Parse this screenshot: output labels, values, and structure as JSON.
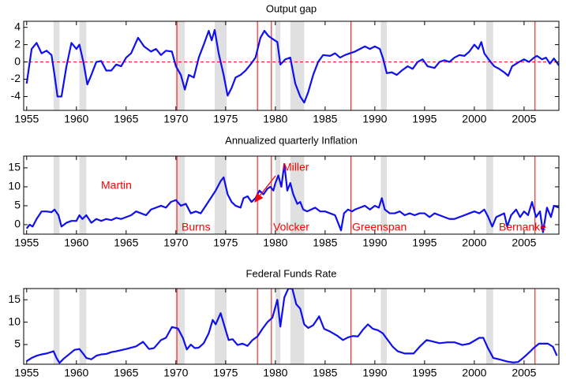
{
  "chart_data": [
    {
      "type": "line",
      "title": "Output gap",
      "color": "#1010ee",
      "xlim": [
        1954.7,
        2008.5
      ],
      "ylim": [
        -5.6,
        4.7
      ],
      "xticks": [
        1955,
        1960,
        1965,
        1970,
        1975,
        1980,
        1985,
        1990,
        1995,
        2000,
        2005
      ],
      "yticks": [
        -4,
        -2,
        0,
        2,
        4
      ],
      "hline": 0,
      "hline_color": "#ff0000",
      "shade_color": "#e0e0e0",
      "vline_color": "#ff0000",
      "recessions": [
        [
          1957.7,
          1958.3
        ],
        [
          1960.3,
          1961.0
        ],
        [
          1970.0,
          1970.9
        ],
        [
          1973.9,
          1975.1
        ],
        [
          1980.0,
          1980.5
        ],
        [
          1981.5,
          1982.9
        ],
        [
          1990.6,
          1991.2
        ],
        [
          2001.2,
          2001.9
        ]
      ],
      "fed_chair_changes": [
        1970.1,
        1978.2,
        1979.6,
        1987.6,
        2006.1
      ],
      "x": [
        1955,
        1955.5,
        1956,
        1956.5,
        1957,
        1957.5,
        1957.8,
        1958.1,
        1958.5,
        1959,
        1959.5,
        1960,
        1960.3,
        1960.7,
        1961.1,
        1961.5,
        1962,
        1962.5,
        1963,
        1963.5,
        1964,
        1964.5,
        1965,
        1965.5,
        1966.2,
        1966.8,
        1967.5,
        1968,
        1968.5,
        1969,
        1969.6,
        1970,
        1970.5,
        1970.9,
        1971.3,
        1971.8,
        1972.3,
        1972.8,
        1973.3,
        1973.6,
        1973.9,
        1974.3,
        1974.8,
        1975.2,
        1975.6,
        1976,
        1976.5,
        1977,
        1977.5,
        1978,
        1978.5,
        1978.9,
        1979.3,
        1979.8,
        1980.2,
        1980.5,
        1981,
        1981.5,
        1982,
        1982.5,
        1982.9,
        1983.3,
        1983.8,
        1984.3,
        1984.8,
        1985.5,
        1986,
        1986.5,
        1987,
        1987.5,
        1988,
        1988.5,
        1989,
        1989.5,
        1990,
        1990.5,
        1990.8,
        1991.2,
        1991.7,
        1992.2,
        1992.7,
        1993.3,
        1993.8,
        1994.3,
        1994.8,
        1995.3,
        1996,
        1996.5,
        1997,
        1997.5,
        1998,
        1998.5,
        1999,
        1999.5,
        2000,
        2000.4,
        2000.7,
        2001,
        2001.5,
        2002,
        2002.5,
        2003,
        2003.4,
        2003.8,
        2004.5,
        2005,
        2005.5,
        2006,
        2006.3,
        2006.8,
        2007.2,
        2007.6,
        2008,
        2008.5
      ],
      "values": [
        -2.5,
        1.5,
        2.2,
        1.0,
        1.3,
        0.8,
        -1.5,
        -4,
        -4,
        -0.5,
        2.2,
        1.5,
        2.0,
        0,
        -2.6,
        -1.5,
        0,
        0.1,
        -1,
        -1,
        -0.3,
        -0.5,
        0.5,
        1.0,
        2.8,
        1.8,
        1.2,
        1.5,
        0.8,
        1.3,
        1.2,
        -0.5,
        -1.5,
        -3.2,
        -1.5,
        -1.8,
        0.5,
        2.0,
        3.6,
        2.5,
        3.7,
        1,
        -1.5,
        -3.9,
        -3,
        -1.8,
        -1.5,
        -1.0,
        -0.3,
        0.5,
        2.8,
        3.6,
        3.0,
        2.6,
        2.3,
        -0.3,
        0.3,
        0.5,
        -2.5,
        -4.0,
        -4.7,
        -3.5,
        -1.5,
        0,
        0.8,
        0.7,
        1.0,
        0.5,
        0.8,
        1.0,
        1.2,
        1.5,
        1.8,
        1.5,
        1.8,
        1.5,
        0.5,
        -1.3,
        -1.2,
        -1.5,
        -1.0,
        -0.5,
        -0.8,
        0,
        0.3,
        -0.5,
        -0.7,
        0,
        0.2,
        0,
        0.5,
        0.8,
        0.7,
        1.2,
        2.0,
        1.5,
        2.3,
        1.0,
        0.2,
        -0.5,
        -0.8,
        -1.2,
        -1.6,
        -0.5,
        0,
        0.3,
        0,
        0.5,
        0.7,
        0.3,
        0.5,
        -0.2,
        0.4,
        -0.4
      ]
    },
    {
      "type": "line",
      "title": "Annualized quarterly Inflation",
      "color": "#1010ee",
      "xlim": [
        1954.7,
        2008.5
      ],
      "ylim": [
        -2.5,
        18.1
      ],
      "xticks": [
        1955,
        1960,
        1965,
        1970,
        1975,
        1980,
        1985,
        1990,
        1995,
        2000,
        2005
      ],
      "yticks": [
        0,
        5,
        10,
        15
      ],
      "shade_color": "#e0e0e0",
      "vline_color": "#ff0000",
      "recessions": [
        [
          1957.7,
          1958.3
        ],
        [
          1960.3,
          1961.0
        ],
        [
          1970.0,
          1970.9
        ],
        [
          1973.9,
          1975.1
        ],
        [
          1980.0,
          1980.5
        ],
        [
          1981.5,
          1982.9
        ],
        [
          1990.6,
          1991.2
        ],
        [
          2001.2,
          2001.9
        ]
      ],
      "fed_chair_changes": [
        1970.1,
        1978.2,
        1979.6,
        1987.6,
        2006.1
      ],
      "annotations": [
        "Martin",
        "Burns",
        "Miller",
        "Volcker",
        "Greenspan",
        "Bernanke"
      ],
      "x": [
        1955,
        1955.3,
        1955.6,
        1956,
        1956.5,
        1957,
        1957.5,
        1957.8,
        1958.2,
        1958.5,
        1959,
        1959.5,
        1960,
        1960.3,
        1960.6,
        1961,
        1961.5,
        1962,
        1962.5,
        1963,
        1963.5,
        1964,
        1964.5,
        1965,
        1965.5,
        1966,
        1966.5,
        1967,
        1967.5,
        1968,
        1968.5,
        1969,
        1969.5,
        1970,
        1970.5,
        1971,
        1971.5,
        1972,
        1972.5,
        1973,
        1973.5,
        1974,
        1974.5,
        1974.8,
        1975.2,
        1975.6,
        1976,
        1976.5,
        1976.8,
        1977.2,
        1977.6,
        1978,
        1978.4,
        1978.8,
        1979.2,
        1979.5,
        1979.8,
        1980,
        1980.3,
        1980.6,
        1980.9,
        1981.2,
        1981.5,
        1981.8,
        1982.2,
        1982.5,
        1982.8,
        1983.2,
        1983.6,
        1984,
        1984.5,
        1985,
        1985.5,
        1986,
        1986.3,
        1986.6,
        1986.9,
        1987.3,
        1987.7,
        1988,
        1988.5,
        1989,
        1989.5,
        1990,
        1990.4,
        1990.7,
        1991,
        1991.5,
        1992,
        1992.5,
        1993,
        1993.5,
        1994,
        1994.5,
        1995,
        1995.5,
        1996,
        1996.5,
        1997,
        1997.5,
        1998,
        1998.5,
        1999,
        1999.5,
        2000,
        2000.5,
        2001,
        2001.4,
        2001.8,
        2002.2,
        2002.6,
        2003,
        2003.3,
        2003.7,
        2004.2,
        2004.6,
        2005,
        2005.4,
        2005.8,
        2006.2,
        2006.6,
        2006.9,
        2007.3,
        2007.7,
        2008,
        2008.5
      ],
      "values": [
        -1,
        0,
        -0.5,
        1.5,
        3.5,
        3.5,
        3.3,
        4,
        2.5,
        -0.5,
        0.5,
        1,
        1,
        2.5,
        1.5,
        2.5,
        0.5,
        1.5,
        1,
        1.5,
        1.2,
        1.8,
        1.5,
        2,
        2.5,
        3.5,
        3,
        2.5,
        4,
        4.5,
        5,
        4.5,
        6,
        6.5,
        5,
        5.5,
        3,
        3.5,
        3,
        5,
        7,
        9,
        11.5,
        12.5,
        8,
        6,
        5,
        4.5,
        7,
        7.5,
        6,
        7,
        9,
        8,
        9.5,
        10,
        9,
        11,
        13,
        10,
        16,
        9,
        11,
        8,
        5.5,
        6,
        4,
        3.5,
        4,
        4.5,
        3.5,
        3.5,
        3,
        2.5,
        0.5,
        -1.5,
        3,
        4,
        3.5,
        4,
        4.5,
        5,
        4,
        5,
        4.5,
        7,
        4,
        3,
        3,
        3.5,
        2.5,
        3,
        2.5,
        3,
        3,
        2,
        3,
        2.5,
        2,
        1.5,
        1.5,
        2,
        2.5,
        3,
        3.5,
        3,
        4,
        2,
        -0.5,
        2,
        2.5,
        3,
        -0.5,
        2.5,
        4,
        2,
        3.5,
        2.5,
        6,
        2,
        3.5,
        -2,
        4.5,
        2,
        5,
        4.5
      ]
    },
    {
      "type": "line",
      "title": "Federal Funds Rate",
      "color": "#1010ee",
      "xlim": [
        1954.7,
        2008.5
      ],
      "ylim": [
        0.6,
        17.5
      ],
      "xticks": [
        1955,
        1960,
        1965,
        1970,
        1975,
        1980,
        1985,
        1990,
        1995,
        2000,
        2005
      ],
      "yticks": [
        5,
        10,
        15
      ],
      "shade_color": "#e0e0e0",
      "vline_color": "#ff0000",
      "recessions": [
        [
          1957.7,
          1958.3
        ],
        [
          1960.3,
          1961.0
        ],
        [
          1970.0,
          1970.9
        ],
        [
          1973.9,
          1975.1
        ],
        [
          1980.0,
          1980.5
        ],
        [
          1981.5,
          1982.9
        ],
        [
          1990.6,
          1991.2
        ],
        [
          2001.2,
          2001.9
        ]
      ],
      "fed_chair_changes": [
        1970.1,
        1978.2,
        1979.6,
        1987.6,
        2006.1
      ],
      "x": [
        1955,
        1955.5,
        1956,
        1956.5,
        1957,
        1957.7,
        1958,
        1958.3,
        1958.7,
        1959.2,
        1959.8,
        1960.3,
        1960.7,
        1961,
        1961.5,
        1962,
        1962.5,
        1963,
        1963.5,
        1964,
        1965,
        1966,
        1966.7,
        1967.3,
        1967.8,
        1968.5,
        1969,
        1969.6,
        1970.2,
        1970.7,
        1971.1,
        1971.5,
        1971.9,
        1972.3,
        1972.8,
        1973.3,
        1973.7,
        1974,
        1974.5,
        1974.9,
        1975.3,
        1975.7,
        1976.2,
        1976.7,
        1977.2,
        1977.7,
        1978.2,
        1978.7,
        1979.2,
        1979.7,
        1980.2,
        1980.5,
        1980.9,
        1981.3,
        1981.7,
        1982.1,
        1982.5,
        1982.9,
        1983.3,
        1983.8,
        1984.4,
        1984.9,
        1985.5,
        1986.2,
        1986.8,
        1987.3,
        1987.8,
        1988.3,
        1988.8,
        1989.3,
        1989.8,
        1990.3,
        1990.8,
        1991.3,
        1991.8,
        1992.3,
        1993,
        1993.9,
        1994.5,
        1995.2,
        1995.8,
        1996.5,
        1997.3,
        1998,
        1998.8,
        1999.5,
        2000.5,
        2000.9,
        2001.3,
        2001.9,
        2002.5,
        2003.3,
        2003.9,
        2004.4,
        2004.9,
        2005.5,
        2006,
        2006.5,
        2007.4,
        2007.9,
        2008.3
      ],
      "values": [
        1.3,
        2,
        2.5,
        2.8,
        3,
        3.5,
        2,
        0.9,
        1.8,
        2.7,
        3.8,
        4,
        2.9,
        2,
        1.7,
        2.5,
        2.8,
        2.9,
        3.3,
        3.5,
        4,
        4.6,
        5.6,
        4,
        4.2,
        6,
        6.5,
        8.9,
        8.6,
        6.5,
        3.9,
        5,
        4.2,
        4.3,
        5.3,
        7.5,
        10.5,
        9.5,
        12,
        9,
        6,
        6.2,
        4.9,
        5.2,
        4.7,
        6,
        6.8,
        8.5,
        10,
        11,
        15,
        9,
        15.5,
        17.5,
        17.5,
        14,
        13,
        9.5,
        8.7,
        9.3,
        11.3,
        8.5,
        7.9,
        7,
        6,
        6.6,
        6.9,
        6.8,
        8.3,
        9.5,
        8.5,
        8.2,
        7.5,
        6,
        4.5,
        3.5,
        3,
        3,
        4.5,
        6,
        5.7,
        5.3,
        5.5,
        5.5,
        4.9,
        5.2,
        6.5,
        6.5,
        4.5,
        2,
        1.7,
        1.2,
        1,
        1.1,
        2,
        3.2,
        4.3,
        5.2,
        5.2,
        4.5,
        2.5
      ]
    }
  ]
}
